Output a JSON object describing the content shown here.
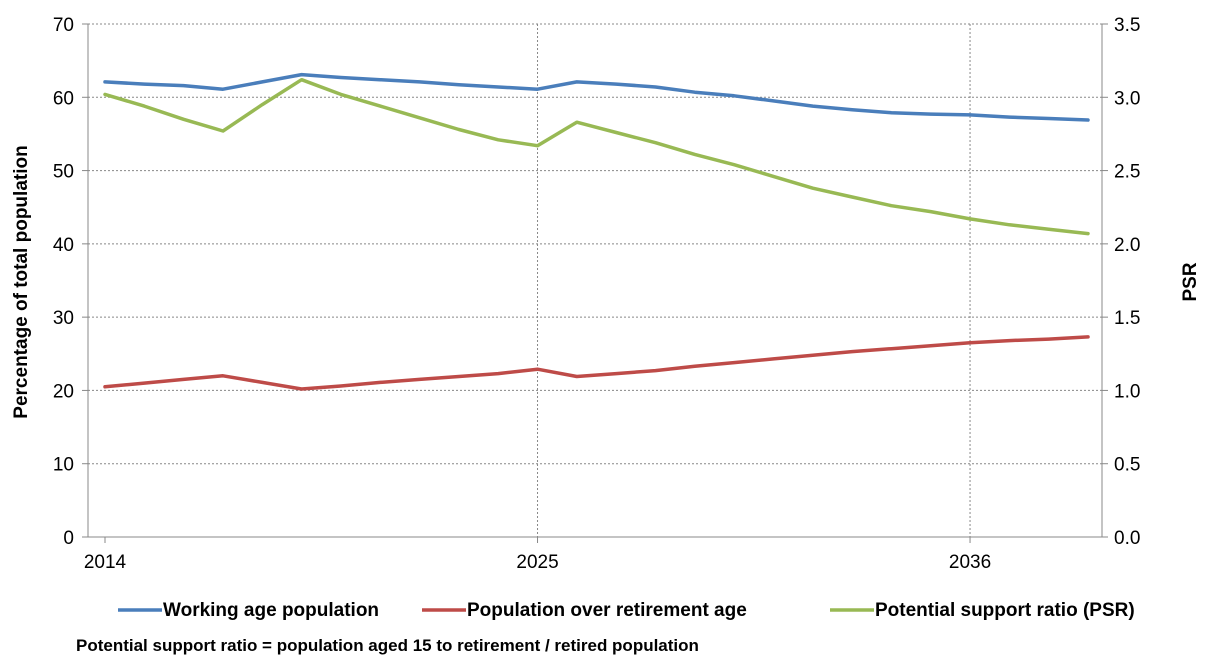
{
  "chart_data": {
    "type": "line",
    "title": "",
    "ylabel": "Percentage of total population",
    "y2label": "PSR",
    "xlabel": "",
    "x_ticks": [
      "2014",
      "2025",
      "2036"
    ],
    "ylim": [
      0,
      70
    ],
    "y_ticks": [
      "0",
      "10",
      "20",
      "30",
      "40",
      "50",
      "60",
      "70"
    ],
    "y2lim": [
      0,
      3.5
    ],
    "y2_ticks": [
      "0.0",
      "0.5",
      "1.0",
      "1.5",
      "2.0",
      "2.5",
      "3.0",
      "3.5"
    ],
    "grid": true,
    "legend_position": "bottom",
    "x": [
      2014,
      2015,
      2016,
      2017,
      2018,
      2019,
      2020,
      2021,
      2022,
      2023,
      2024,
      2025,
      2026,
      2027,
      2028,
      2029,
      2030,
      2031,
      2032,
      2033,
      2034,
      2035,
      2036,
      2037,
      2038,
      2039
    ],
    "series": [
      {
        "name": "Working age population",
        "axis": "left",
        "color": "#4a7ebb",
        "values": [
          62.1,
          61.8,
          61.6,
          61.1,
          62.1,
          63.1,
          62.7,
          62.4,
          62.1,
          61.7,
          61.4,
          61.1,
          62.1,
          61.8,
          61.4,
          60.7,
          60.2,
          59.5,
          58.8,
          58.3,
          57.9,
          57.7,
          57.6,
          57.3,
          57.1,
          56.9
        ]
      },
      {
        "name": "Population over retirement age",
        "axis": "left",
        "color": "#be4b48",
        "values": [
          20.5,
          21.0,
          21.5,
          22.0,
          21.1,
          20.2,
          20.6,
          21.1,
          21.5,
          21.9,
          22.3,
          22.9,
          21.9,
          22.3,
          22.7,
          23.3,
          23.8,
          24.3,
          24.8,
          25.3,
          25.7,
          26.1,
          26.5,
          26.8,
          27.0,
          27.3
        ]
      },
      {
        "name": "Potential support ratio (PSR)",
        "axis": "right",
        "color": "#98b954",
        "values": [
          3.02,
          2.94,
          2.85,
          2.77,
          2.95,
          3.12,
          3.02,
          2.94,
          2.86,
          2.78,
          2.71,
          2.67,
          2.83,
          2.76,
          2.69,
          2.61,
          2.54,
          2.46,
          2.38,
          2.32,
          2.26,
          2.22,
          2.17,
          2.13,
          2.1,
          2.07
        ]
      }
    ]
  },
  "note": "Potential support ratio = population aged 15 to retirement / retired population"
}
